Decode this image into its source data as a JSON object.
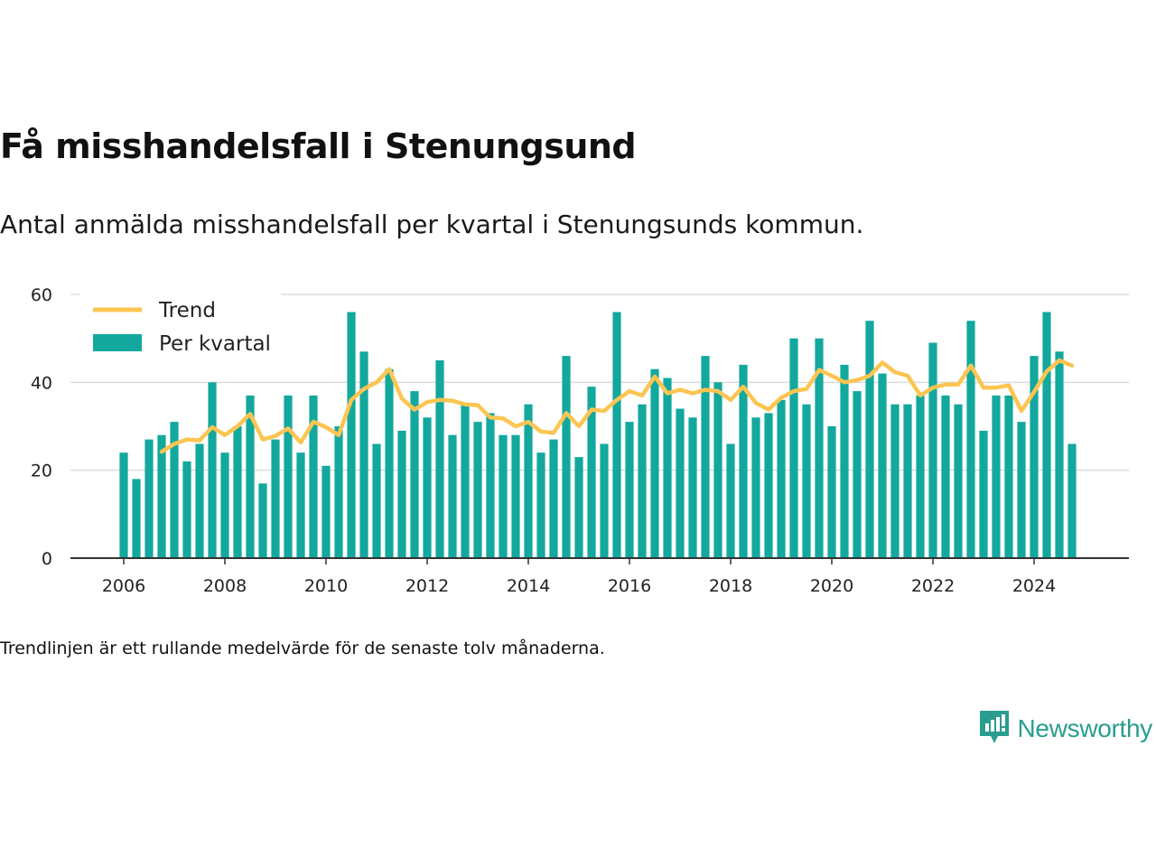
{
  "title": "Få misshandelsfall i Stenungsund",
  "subtitle": "Antal anmälda misshandelsfall per kvartal i Stenungsunds kommun.",
  "footnote": "Trendlinjen är ett rullande medelvärde för de senaste tolv månaderna.",
  "brand": {
    "name": "Newsworthy",
    "color": "#2a9d8f"
  },
  "chart_data": {
    "type": "bar",
    "x_unit": "quarter",
    "start": "2006 Q1",
    "series": [
      {
        "name": "Per kvartal",
        "kind": "bar",
        "color": "#13a89e",
        "values": [
          24,
          18,
          27,
          28,
          31,
          22,
          26,
          40,
          24,
          30,
          37,
          17,
          27,
          37,
          24,
          37,
          21,
          30,
          56,
          47,
          26,
          43,
          29,
          38,
          32,
          45,
          28,
          35,
          31,
          33,
          28,
          28,
          35,
          24,
          27,
          46,
          23,
          39,
          26,
          56,
          31,
          35,
          43,
          41,
          34,
          32,
          46,
          40,
          26,
          44,
          32,
          33,
          36,
          50,
          35,
          50,
          30,
          44,
          38,
          54,
          42,
          35,
          35,
          37,
          49,
          37,
          35,
          54,
          29,
          37,
          37,
          31,
          46,
          56,
          47,
          26
        ]
      },
      {
        "name": "Trend",
        "kind": "line",
        "color": "#fcc552",
        "values": [
          null,
          null,
          null,
          24.2,
          26.0,
          27.0,
          26.8,
          29.8,
          28.0,
          30.0,
          32.8,
          27.0,
          27.8,
          29.5,
          26.3,
          31.0,
          29.8,
          28.0,
          36.0,
          38.5,
          40.0,
          43.0,
          36.3,
          33.8,
          35.5,
          36.0,
          35.8,
          35.0,
          34.8,
          32.0,
          31.8,
          30.0,
          31.0,
          28.8,
          28.5,
          33.0,
          30.0,
          33.8,
          33.5,
          36.0,
          38.0,
          37.0,
          41.3,
          37.5,
          38.3,
          37.5,
          38.3,
          38.0,
          36.0,
          39.0,
          35.3,
          33.8,
          36.5,
          38.0,
          38.5,
          42.8,
          41.5,
          40.0,
          40.5,
          41.5,
          44.5,
          42.3,
          41.5,
          37.0,
          38.8,
          39.5,
          39.5,
          43.8,
          38.8,
          38.8,
          39.3,
          33.5,
          37.8,
          42.5,
          45.0,
          43.8
        ]
      }
    ],
    "x_ticks": [
      "2006",
      "2008",
      "2010",
      "2012",
      "2014",
      "2016",
      "2018",
      "2020",
      "2022",
      "2024"
    ],
    "y_ticks": [
      0,
      20,
      40,
      60
    ],
    "ylim": [
      0,
      60
    ],
    "grid": "horizontal",
    "legend_position": "top-left",
    "xlabel": "",
    "ylabel": ""
  }
}
